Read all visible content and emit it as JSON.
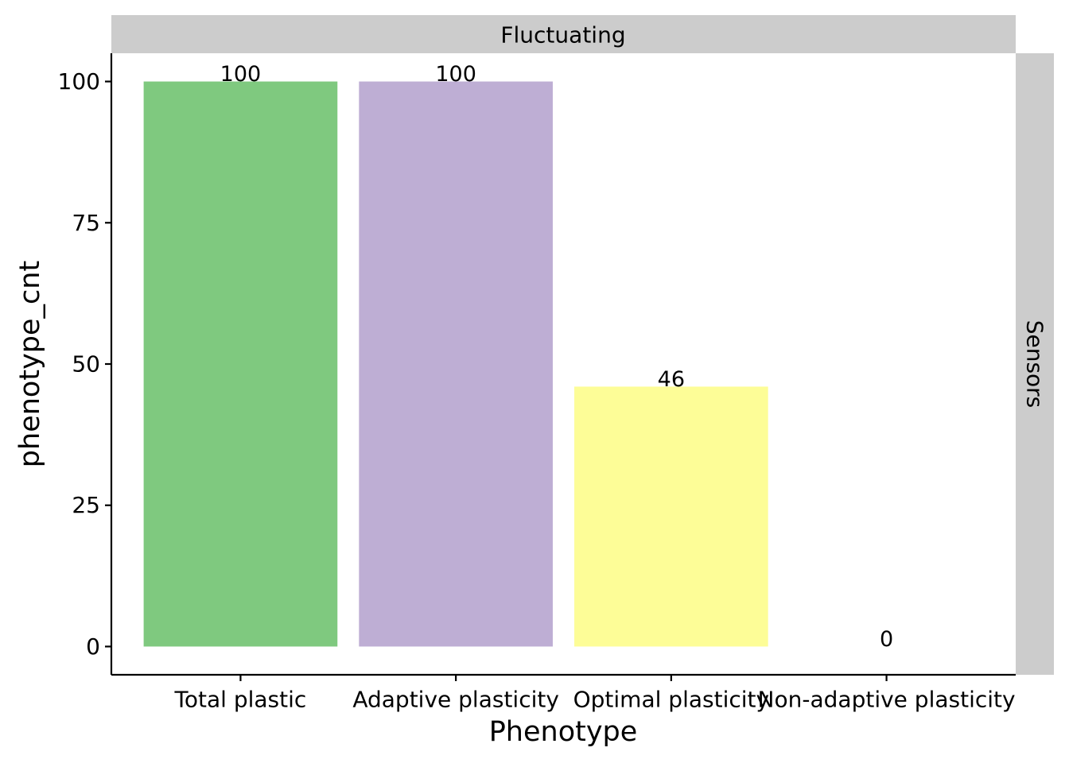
{
  "chart_data": {
    "type": "bar",
    "facet_top": "Fluctuating",
    "facet_right": "Sensors",
    "xlabel": "Phenotype",
    "ylabel": "phenotype_cnt",
    "categories": [
      "Total plastic",
      "Adaptive plasticity",
      "Optimal plasticity",
      "Non-adaptive plasticity"
    ],
    "values": [
      100,
      100,
      46,
      0
    ],
    "data_labels": [
      "100",
      "100",
      "46",
      "0"
    ],
    "colors": [
      "#7fc97f",
      "#beaed4",
      "#fdfd97",
      "#fdc086"
    ],
    "yticks": [
      "0",
      "25",
      "50",
      "75",
      "100"
    ],
    "ytick_values": [
      0,
      25,
      50,
      75,
      100
    ],
    "ylim": [
      -5,
      105
    ],
    "grid": false,
    "legend": "none"
  }
}
